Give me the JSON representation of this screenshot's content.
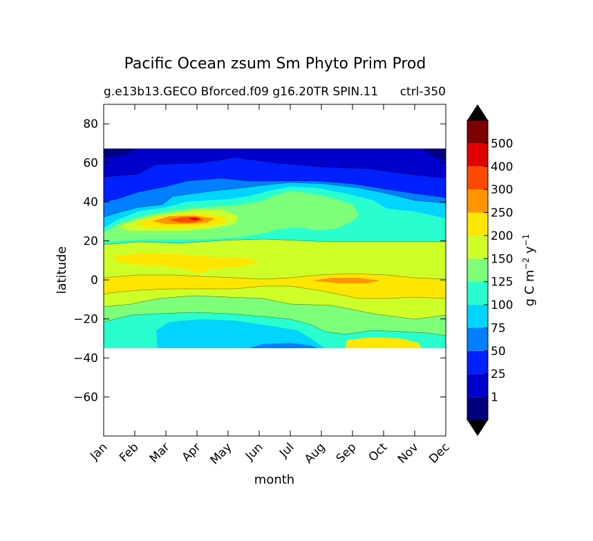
{
  "chart_data": {
    "type": "contourf",
    "title": "Pacific Ocean zsum Sm Phyto Prim Prod",
    "subtitle_left": "g.e13b13.GECO Bforced.f09 g16.20TR SPIN.11",
    "subtitle_right": "ctrl-350",
    "xlabel": "month",
    "ylabel": "latitude",
    "x_ticks": [
      "Jan",
      "Feb",
      "Mar",
      "Apr",
      "May",
      "Jun",
      "Jul",
      "Aug",
      "Sep",
      "Oct",
      "Nov",
      "Dec"
    ],
    "y_ticks": [
      "80",
      "60",
      "40",
      "20",
      "0",
      "−20",
      "−40",
      "−60"
    ],
    "ylim": [
      -80,
      90
    ],
    "data_lat_range": [
      -34,
      67
    ],
    "colorbar": {
      "label_main": "g C m",
      "label_exp1": "−2",
      "label_mid": " y",
      "label_exp2": "−1",
      "levels": [
        "1",
        "25",
        "50",
        "75",
        "100",
        "125",
        "150",
        "200",
        "250",
        "300",
        "400",
        "500"
      ],
      "colors": [
        "#00007f",
        "#0000cd",
        "#0020ff",
        "#0080ff",
        "#00d4ff",
        "#29ffce",
        "#7dff7a",
        "#ceff29",
        "#ffe600",
        "#ff9400",
        "#ff4a00",
        "#e30000",
        "#7f0000"
      ],
      "extend_colors": {
        "under": "#000000",
        "over": "#000000"
      }
    },
    "field_description_lat_month": [
      {
        "lat_band": [
          60,
          67
        ],
        "level_index": 1
      },
      {
        "lat_band": [
          45,
          60
        ],
        "level_index": 2
      },
      {
        "lat_band": [
          35,
          45
        ],
        "level_index": 4
      },
      {
        "lat_band": [
          22,
          35
        ],
        "level_index": 5
      },
      {
        "lat_band": [
          -10,
          22
        ],
        "level_index": 7
      },
      {
        "lat_band": [
          -25,
          -10
        ],
        "level_index": 6
      },
      {
        "lat_band": [
          -34,
          -25
        ],
        "level_index": 5
      }
    ]
  }
}
